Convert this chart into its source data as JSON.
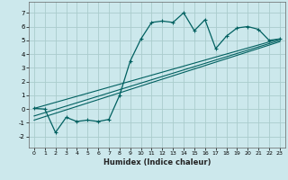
{
  "title": "",
  "xlabel": "Humidex (Indice chaleur)",
  "bg_color": "#cce8ec",
  "grid_color": "#aacccc",
  "line_color": "#006060",
  "xlim": [
    -0.5,
    23.5
  ],
  "ylim": [
    -2.8,
    7.8
  ],
  "xticks": [
    0,
    1,
    2,
    3,
    4,
    5,
    6,
    7,
    8,
    9,
    10,
    11,
    12,
    13,
    14,
    15,
    16,
    17,
    18,
    19,
    20,
    21,
    22,
    23
  ],
  "yticks": [
    -2,
    -1,
    0,
    1,
    2,
    3,
    4,
    5,
    6,
    7
  ],
  "curve_x": [
    0,
    1,
    2,
    3,
    4,
    5,
    6,
    7,
    8,
    9,
    10,
    11,
    12,
    13,
    14,
    15,
    16,
    17,
    18,
    19,
    20,
    21,
    22,
    23
  ],
  "curve_y": [
    0.05,
    0.0,
    -1.7,
    -0.6,
    -0.9,
    -0.8,
    -0.9,
    -0.75,
    1.0,
    3.5,
    5.1,
    6.3,
    6.4,
    6.3,
    7.0,
    5.7,
    6.5,
    4.4,
    5.3,
    5.9,
    6.0,
    5.8,
    5.0,
    5.1
  ],
  "reg_line1": {
    "x": [
      0,
      23
    ],
    "y": [
      0.05,
      5.1
    ]
  },
  "reg_line2": {
    "x": [
      0,
      23
    ],
    "y": [
      -0.5,
      5.0
    ]
  },
  "reg_line3": {
    "x": [
      0,
      23
    ],
    "y": [
      -0.8,
      4.9
    ]
  }
}
